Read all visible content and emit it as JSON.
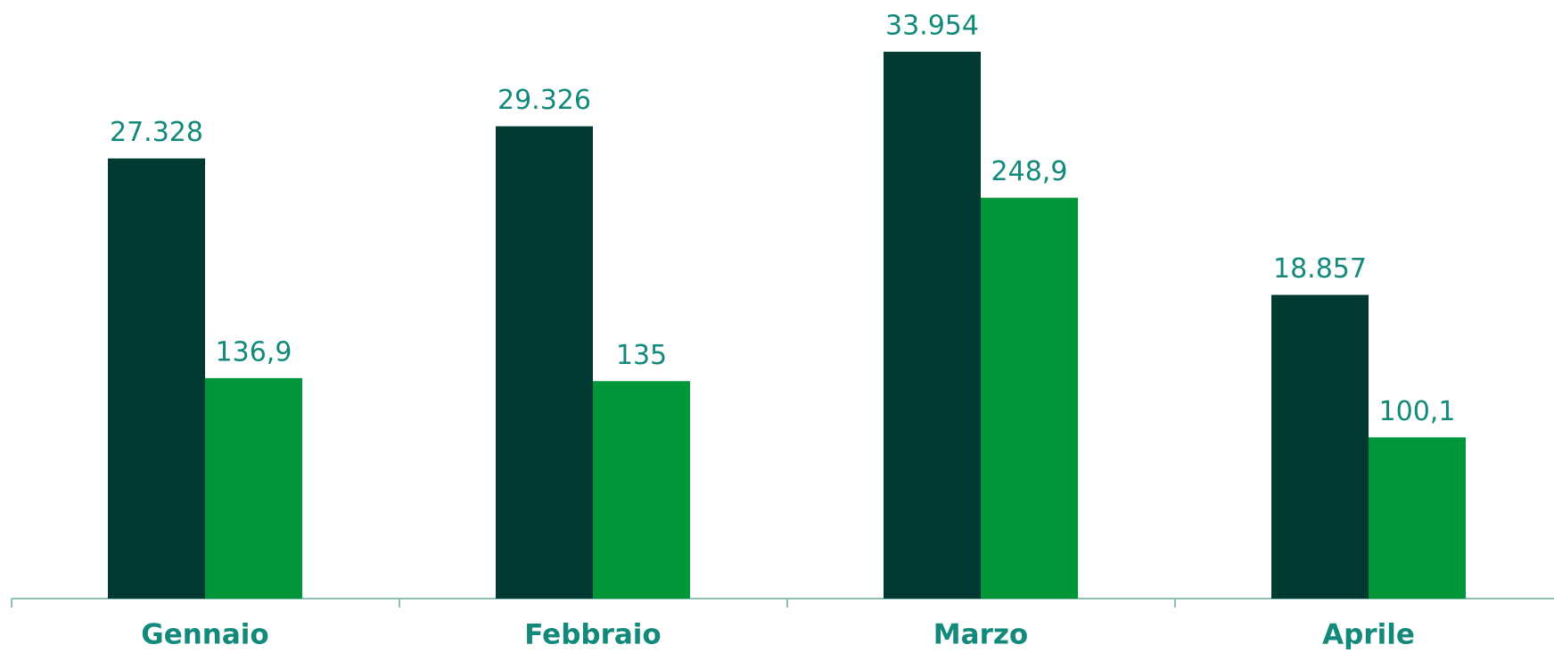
{
  "chart_data": {
    "type": "bar",
    "categories": [
      "Gennaio",
      "Febbraio",
      "Marzo",
      "Aprile"
    ],
    "series": [
      {
        "color": "#003a33",
        "values": [
          27328,
          29326,
          33954,
          18857
        ],
        "value_labels": [
          "27.328",
          "29.326",
          "33.954",
          "18.857"
        ]
      },
      {
        "color": "#00963a",
        "axis": "y2",
        "values": [
          136.9,
          135,
          248.9,
          100.1
        ],
        "value_labels": [
          "136,9",
          "135",
          "248,9",
          "100,1"
        ]
      }
    ],
    "ylim": [
      0,
      37000
    ],
    "y2lim": [
      0,
      370
    ]
  }
}
